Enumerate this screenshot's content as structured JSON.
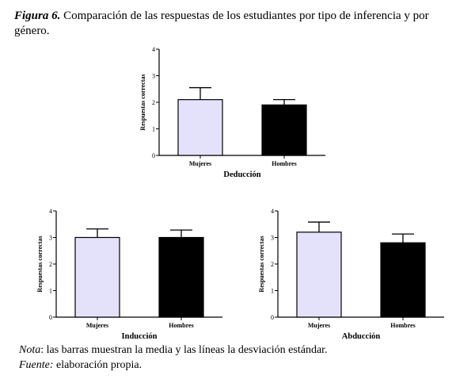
{
  "caption": {
    "label": "Figura 6.",
    "text": " Comparación de las respuestas de los estudiantes por tipo de inferencia y por género."
  },
  "chart_data": [
    {
      "type": "bar",
      "title": "Deducción",
      "ylabel": "Respuestas correctas",
      "ylim": [
        0,
        4
      ],
      "yticks": [
        0,
        1,
        2,
        3,
        4
      ],
      "categories": [
        "Mujeres",
        "Hombres"
      ],
      "values": [
        2.1,
        1.9
      ],
      "errors": [
        0.45,
        0.2
      ],
      "colors": [
        "#e4e2fa",
        "#000000"
      ]
    },
    {
      "type": "bar",
      "title": "Inducción",
      "ylabel": "Respuestas correctas",
      "ylim": [
        0,
        4
      ],
      "yticks": [
        0,
        1,
        2,
        3,
        4
      ],
      "categories": [
        "Mujeres",
        "Hombres"
      ],
      "values": [
        3.0,
        3.0
      ],
      "errors": [
        0.32,
        0.28
      ],
      "colors": [
        "#e4e2fa",
        "#000000"
      ]
    },
    {
      "type": "bar",
      "title": "Abducción",
      "ylabel": "Respuestas correctas",
      "ylim": [
        0,
        4
      ],
      "yticks": [
        0,
        1,
        2,
        3,
        4
      ],
      "categories": [
        "Mujeres",
        "Hombres"
      ],
      "values": [
        3.2,
        2.8
      ],
      "errors": [
        0.38,
        0.33
      ],
      "colors": [
        "#e4e2fa",
        "#000000"
      ]
    }
  ],
  "note": {
    "label": "Nota",
    "text": ": las barras muestran la media y las líneas la desviación estándar."
  },
  "source": {
    "label": "Fuente:",
    "text": " elaboración propia."
  }
}
